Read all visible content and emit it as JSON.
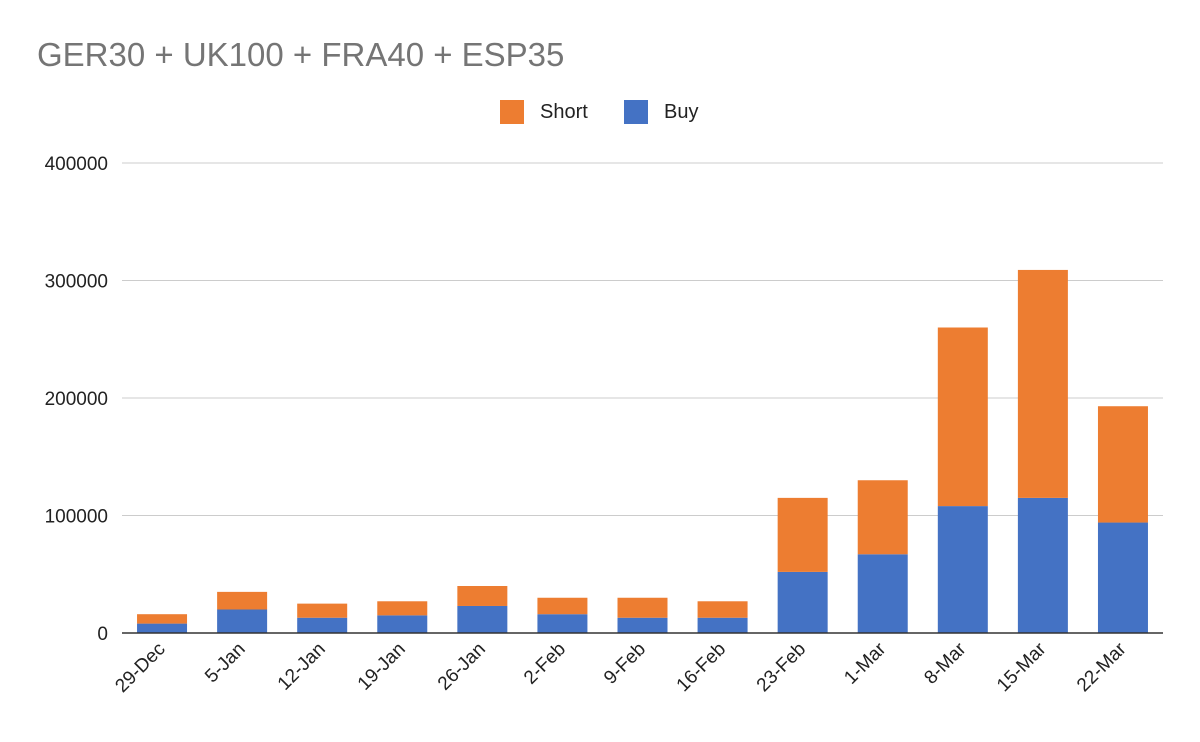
{
  "chart_data": {
    "type": "bar",
    "stacked": true,
    "title": "GER30 + UK100 + FRA40 + ESP35",
    "xlabel": "",
    "ylabel": "",
    "categories": [
      "29-Dec",
      "5-Jan",
      "12-Jan",
      "19-Jan",
      "26-Jan",
      "2-Feb",
      "9-Feb",
      "16-Feb",
      "23-Feb",
      "1-Mar",
      "8-Mar",
      "15-Mar",
      "22-Mar"
    ],
    "series": [
      {
        "name": "Buy",
        "color": "#4472C4",
        "values": [
          8000,
          20000,
          13000,
          15000,
          23000,
          16000,
          13000,
          13000,
          52000,
          67000,
          108000,
          115000,
          94000
        ]
      },
      {
        "name": "Short",
        "color": "#ED7D31",
        "values": [
          8000,
          15000,
          12000,
          12000,
          17000,
          14000,
          17000,
          14000,
          63000,
          63000,
          152000,
          194000,
          99000
        ]
      }
    ],
    "legend_order": [
      "Short",
      "Buy"
    ],
    "ylim": [
      0,
      400000
    ],
    "yticks": [
      0,
      100000,
      200000,
      300000,
      400000
    ],
    "grid": true,
    "legend_position": "top-center"
  }
}
